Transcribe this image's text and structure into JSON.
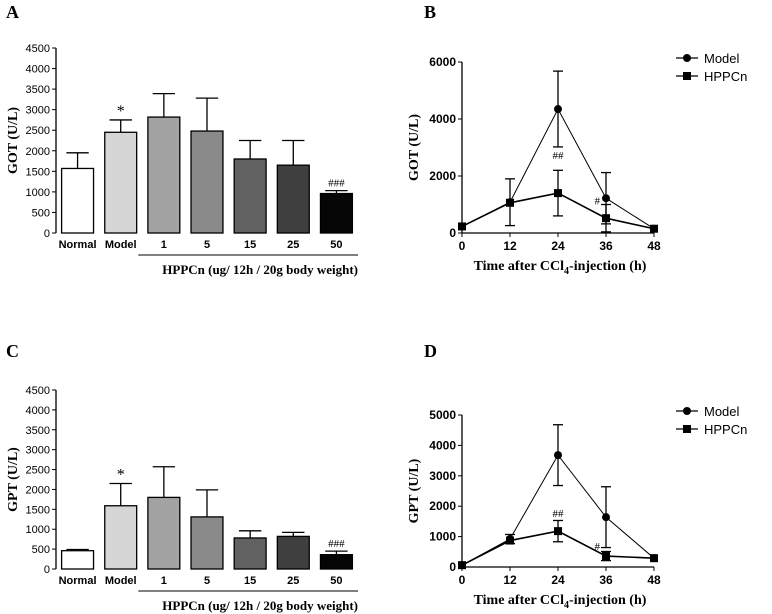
{
  "chart_data": [
    {
      "id": "A",
      "panel_label": "A",
      "type": "bar",
      "title": "",
      "ylabel": "GOT (U/L)",
      "xlabel": "HPPCn (ug/ 12h / 20g body weight)",
      "ylim": [
        0,
        4500
      ],
      "yticks": [
        0,
        500,
        1000,
        1500,
        2000,
        2500,
        3000,
        3500,
        4000,
        4500
      ],
      "categories": [
        "Normal",
        "Model",
        "1",
        "5",
        "15",
        "25",
        "50"
      ],
      "values": [
        1570,
        2450,
        2820,
        2480,
        1800,
        1650,
        960
      ],
      "errors": [
        380,
        300,
        570,
        800,
        450,
        600,
        70
      ],
      "colors": [
        "#ffffff",
        "#d6d6d6",
        "#a3a3a3",
        "#8a8a8a",
        "#626262",
        "#404040",
        "#050505"
      ],
      "annotations": [
        {
          "category": "Model",
          "text": "*"
        },
        {
          "category": "50",
          "text": "###"
        }
      ],
      "grid": false
    },
    {
      "id": "B",
      "panel_label": "B",
      "type": "line",
      "ylabel": "GOT (U/L)",
      "xlabel": {
        "prefix": "Time after CCl",
        "sub": "4",
        "suffix": "-injection (h)"
      },
      "x": [
        0,
        12,
        24,
        36,
        48
      ],
      "xlim": [
        0,
        48
      ],
      "ylim": [
        0,
        6000
      ],
      "yticks": [
        0,
        2000,
        4000,
        6000
      ],
      "series": [
        {
          "name": "Model",
          "marker": "circle",
          "values": [
            230,
            1080,
            4350,
            1220,
            150
          ],
          "errors": [
            0,
            820,
            1330,
            900,
            0
          ]
        },
        {
          "name": "HPPCn",
          "marker": "square",
          "values": [
            230,
            1060,
            1400,
            520,
            150
          ],
          "errors": [
            0,
            0,
            800,
            480,
            0
          ]
        }
      ],
      "annotations": [
        {
          "x": 24,
          "y": 2600,
          "text": "##"
        },
        {
          "x": 36,
          "y": 1000,
          "text": "#",
          "align": "right"
        }
      ],
      "legend_position": "top-right",
      "grid": false
    },
    {
      "id": "C",
      "panel_label": "C",
      "type": "bar",
      "ylabel": "GPT (U/L)",
      "xlabel": "HPPCn (ug/ 12h / 20g body weight)",
      "ylim": [
        0,
        4500
      ],
      "yticks": [
        0,
        500,
        1000,
        1500,
        2000,
        2500,
        3000,
        3500,
        4000,
        4500
      ],
      "categories": [
        "Normal",
        "Model",
        "1",
        "5",
        "15",
        "25",
        "50"
      ],
      "values": [
        460,
        1590,
        1800,
        1310,
        780,
        820,
        360
      ],
      "errors": [
        30,
        560,
        770,
        680,
        180,
        100,
        90
      ],
      "colors": [
        "#ffffff",
        "#d6d6d6",
        "#a3a3a3",
        "#8a8a8a",
        "#626262",
        "#404040",
        "#050505"
      ],
      "annotations": [
        {
          "category": "Model",
          "text": "*"
        },
        {
          "category": "50",
          "text": "###"
        }
      ],
      "grid": false
    },
    {
      "id": "D",
      "panel_label": "D",
      "type": "line",
      "ylabel": "GPT (U/L)",
      "xlabel": {
        "prefix": "Time after CCl",
        "sub": "4",
        "suffix": "-injection (h)"
      },
      "x": [
        0,
        12,
        24,
        36,
        48
      ],
      "xlim": [
        0,
        48
      ],
      "ylim": [
        0,
        5000
      ],
      "yticks": [
        0,
        1000,
        2000,
        3000,
        4000,
        5000
      ],
      "series": [
        {
          "name": "Model",
          "marker": "circle",
          "values": [
            60,
            920,
            3680,
            1640,
            290
          ],
          "errors": [
            0,
            150,
            1000,
            1000,
            0
          ]
        },
        {
          "name": "HPPCn",
          "marker": "square",
          "values": [
            60,
            870,
            1180,
            360,
            290
          ],
          "errors": [
            0,
            0,
            350,
            150,
            0
          ]
        }
      ],
      "annotations": [
        {
          "x": 24,
          "y": 1650,
          "text": "##"
        },
        {
          "x": 36,
          "y": 560,
          "text": "#",
          "align": "right"
        }
      ],
      "legend_position": "top-right",
      "grid": false
    }
  ]
}
